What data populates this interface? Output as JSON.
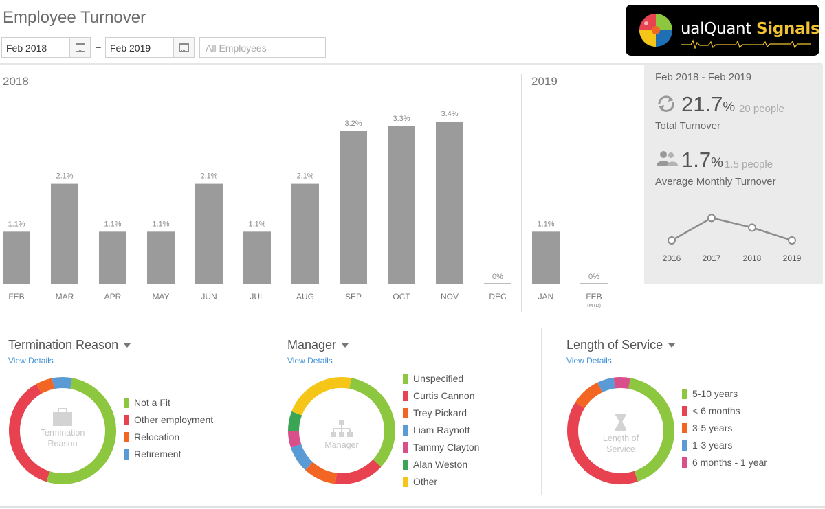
{
  "page": {
    "title": "Employee Turnover"
  },
  "logo": {
    "text_main": "ualQuant ",
    "text_accent": "Signals"
  },
  "filters": {
    "start_date": "Feb 2018",
    "end_date": "Feb 2019",
    "separator": "–",
    "employees_placeholder": "All Employees"
  },
  "years": {
    "first": "2018",
    "second": "2019"
  },
  "chart_data": {
    "type": "bar",
    "categories": [
      "FEB",
      "MAR",
      "APR",
      "MAY",
      "JUN",
      "JUL",
      "AUG",
      "SEP",
      "OCT",
      "NOV",
      "DEC",
      "JAN",
      "FEB"
    ],
    "sub_labels": [
      "",
      "",
      "",
      "",
      "",
      "",
      "",
      "",
      "",
      "",
      "",
      "",
      "(MTD)"
    ],
    "values": [
      1.1,
      2.1,
      1.1,
      1.1,
      2.1,
      1.1,
      2.1,
      3.2,
      3.3,
      3.4,
      0,
      1.1,
      0
    ],
    "data_labels": [
      "1.1%",
      "2.1%",
      "1.1%",
      "1.1%",
      "2.1%",
      "1.1%",
      "2.1%",
      "3.2%",
      "3.3%",
      "3.4%",
      "0%",
      "1.1%",
      "0%"
    ],
    "year_groups": [
      "2018",
      "2018",
      "2018",
      "2018",
      "2018",
      "2018",
      "2018",
      "2018",
      "2018",
      "2018",
      "2018",
      "2019",
      "2019"
    ],
    "ylim": [
      0,
      3.5
    ],
    "grid": false,
    "bar_color": "#9b9b9b"
  },
  "summary": {
    "range": "Feb 2018 - Feb 2019",
    "total_value": "21.7",
    "total_unit": "%",
    "total_people": "20 people",
    "total_label": "Total Turnover",
    "avg_value": "1.7",
    "avg_unit": "%",
    "avg_people": "1.5 people",
    "avg_label": "Average Monthly Turnover",
    "trend": {
      "years": [
        "2016",
        "2017",
        "2018",
        "2019"
      ],
      "values": [
        1.3,
        2.0,
        1.7,
        1.3
      ]
    }
  },
  "panels": [
    {
      "title": "Termination Reason",
      "link": "View Details",
      "center_lines": [
        "Termination",
        "Reason"
      ],
      "center_icon": "briefcase-icon",
      "legend": [
        {
          "label": "Not a Fit",
          "color": "#8dc63f",
          "value": 0.52
        },
        {
          "label": "Other employment",
          "color": "#e8414f",
          "value": 0.37
        },
        {
          "label": "Relocation",
          "color": "#f26522",
          "value": 0.05
        },
        {
          "label": "Retirement",
          "color": "#5b9bd5",
          "value": 0.06
        }
      ]
    },
    {
      "title": "Manager",
      "link": "View Details",
      "center_lines": [
        "Manager"
      ],
      "center_icon": "org-chart-icon",
      "legend": [
        {
          "label": "Unspecified",
          "color": "#8dc63f",
          "value": 0.34
        },
        {
          "label": "Curtis Cannon",
          "color": "#e8414f",
          "value": 0.15
        },
        {
          "label": "Trey Pickard",
          "color": "#f26522",
          "value": 0.1
        },
        {
          "label": "Liam Raynott",
          "color": "#5b9bd5",
          "value": 0.08
        },
        {
          "label": "Tammy Clayton",
          "color": "#d94f8a",
          "value": 0.05
        },
        {
          "label": "Alan Weston",
          "color": "#3aa655",
          "value": 0.06
        },
        {
          "label": "Other",
          "color": "#f5c518",
          "value": 0.22
        }
      ]
    },
    {
      "title": "Length of Service",
      "link": "View Details",
      "center_lines": [
        "Length of",
        "Service"
      ],
      "center_icon": "hourglass-icon",
      "legend": [
        {
          "label": "5-10 years",
          "color": "#8dc63f",
          "value": 0.42
        },
        {
          "label": "< 6 months",
          "color": "#e8414f",
          "value": 0.39
        },
        {
          "label": "3-5 years",
          "color": "#f26522",
          "value": 0.09
        },
        {
          "label": "1-3 years",
          "color": "#5b9bd5",
          "value": 0.05
        },
        {
          "label": "6 months - 1 year",
          "color": "#d94f8a",
          "value": 0.05
        }
      ]
    }
  ]
}
